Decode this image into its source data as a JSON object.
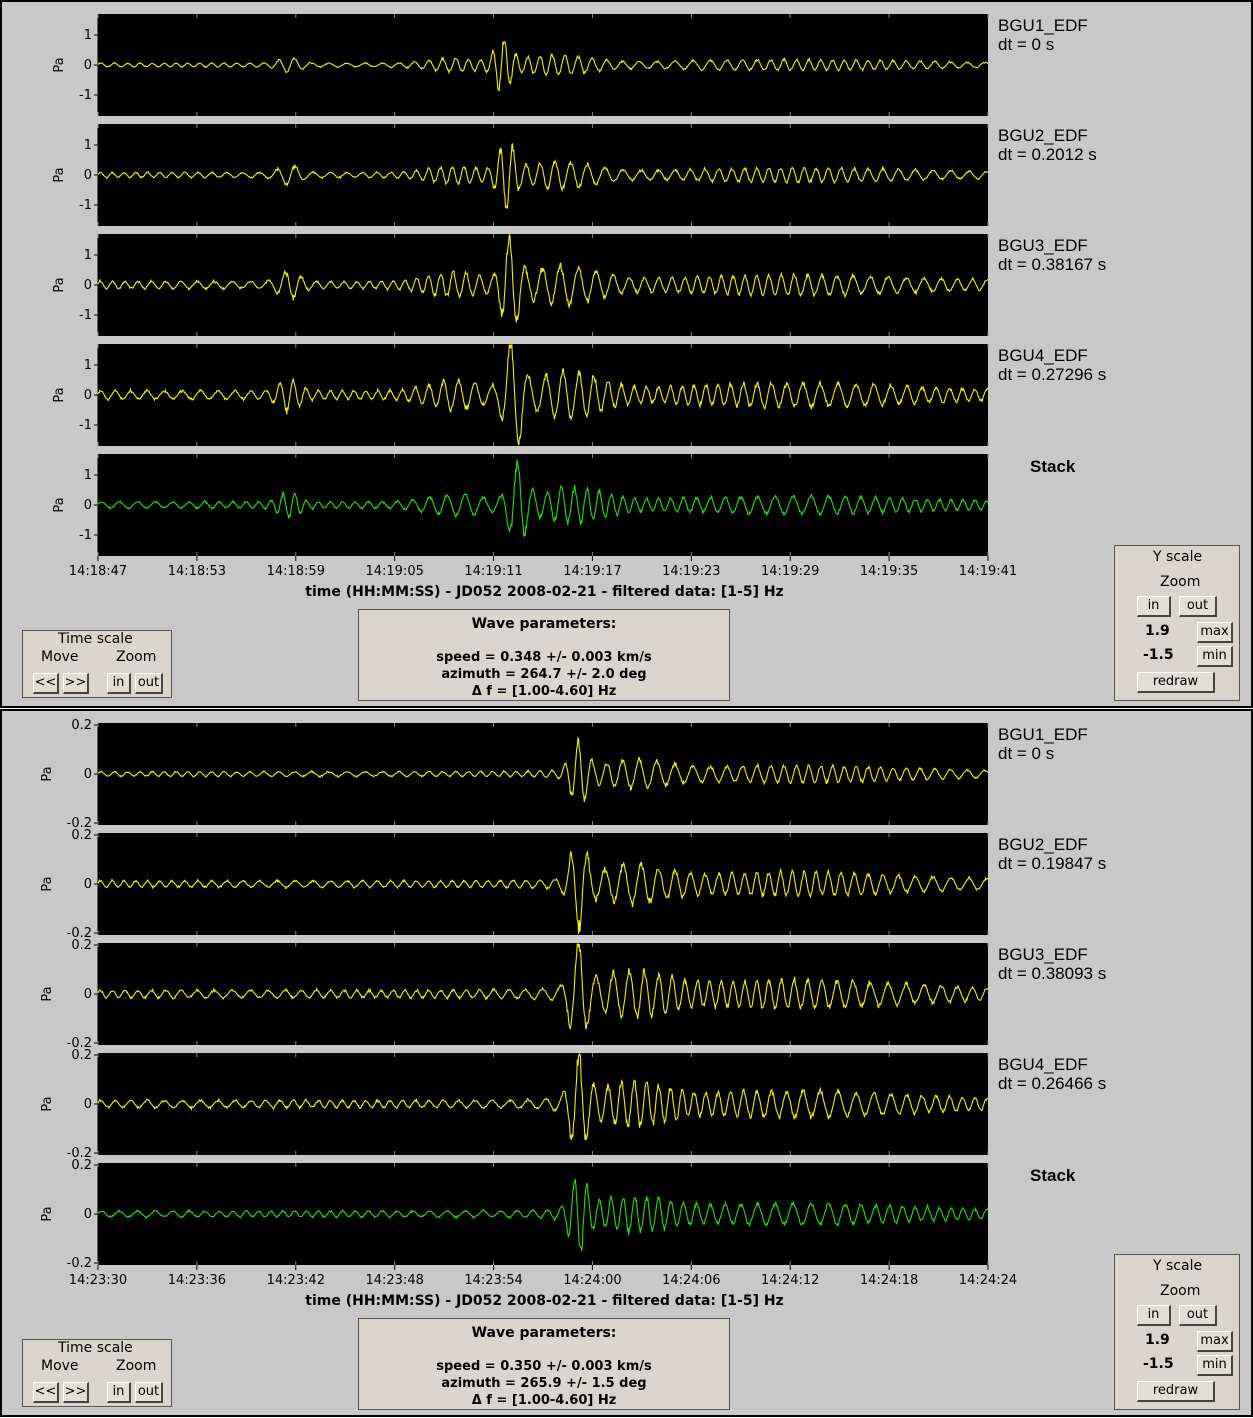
{
  "colors": {
    "trace": "#f0f000",
    "stack": "#22e000",
    "plot_bg": "#000000",
    "panel_bg": "#c8c8c8"
  },
  "panels": [
    {
      "id": "top",
      "tracks": [
        {
          "name": "BGU1_EDF",
          "dt": "dt = 0 s"
        },
        {
          "name": "BGU2_EDF",
          "dt": "dt = 0.2012 s"
        },
        {
          "name": "BGU3_EDF",
          "dt": "dt = 0.38167 s"
        },
        {
          "name": "BGU4_EDF",
          "dt": "dt = 0.27296 s"
        },
        {
          "name": "Stack",
          "dt": ""
        }
      ],
      "y_unit": "Pa",
      "y_ticks": [
        "1",
        "0",
        "-1"
      ],
      "x_ticks": [
        "14:18:47",
        "14:18:53",
        "14:18:59",
        "14:19:05",
        "14:19:11",
        "14:19:17",
        "14:19:23",
        "14:19:29",
        "14:19:35",
        "14:19:41"
      ],
      "caption": "time (HH:MM:SS) - JD052 2008-02-21 - filtered data: [1-5] Hz",
      "time_scale": {
        "title": "Time scale",
        "move": "Move",
        "zoom": "Zoom",
        "prev": "<<",
        "next": ">>",
        "in": "in",
        "out": "out"
      },
      "wave": {
        "title": "Wave parameters:",
        "speed": "speed = 0.348 +/- 0.003 km/s",
        "azimuth": "azimuth = 264.7 +/- 2.0 deg",
        "freq": "Δ f = [1.00-4.60] Hz"
      },
      "y_scale": {
        "title": "Y scale",
        "zoom": "Zoom",
        "in": "in",
        "out": "out",
        "max_value": "1.9",
        "max": "max",
        "min_value": "-1.5",
        "min": "min",
        "redraw": "redraw"
      }
    },
    {
      "id": "bottom",
      "tracks": [
        {
          "name": "BGU1_EDF",
          "dt": "dt = 0 s"
        },
        {
          "name": "BGU2_EDF",
          "dt": "dt = 0.19847 s"
        },
        {
          "name": "BGU3_EDF",
          "dt": "dt = 0.38093 s"
        },
        {
          "name": "BGU4_EDF",
          "dt": "dt = 0.26466 s"
        },
        {
          "name": "Stack",
          "dt": ""
        }
      ],
      "y_unit": "Pa",
      "y_ticks": [
        "0.2",
        "0",
        "-0.2"
      ],
      "x_ticks": [
        "14:23:30",
        "14:23:36",
        "14:23:42",
        "14:23:48",
        "14:23:54",
        "14:24:00",
        "14:24:06",
        "14:24:12",
        "14:24:18",
        "14:24:24"
      ],
      "caption": "time (HH:MM:SS) - JD052 2008-02-21 - filtered data: [1-5] Hz",
      "time_scale": {
        "title": "Time scale",
        "move": "Move",
        "zoom": "Zoom",
        "prev": "<<",
        "next": ">>",
        "in": "in",
        "out": "out"
      },
      "wave": {
        "title": "Wave parameters:",
        "speed": "speed = 0.350 +/- 0.003 km/s",
        "azimuth": "azimuth = 265.9 +/- 1.5 deg",
        "freq": "Δ f = [1.00-4.60] Hz"
      },
      "y_scale": {
        "title": "Y scale",
        "zoom": "Zoom",
        "in": "in",
        "out": "out",
        "max_value": "1.9",
        "max": "max",
        "min_value": "-1.5",
        "min": "min",
        "redraw": "redraw"
      }
    }
  ]
}
